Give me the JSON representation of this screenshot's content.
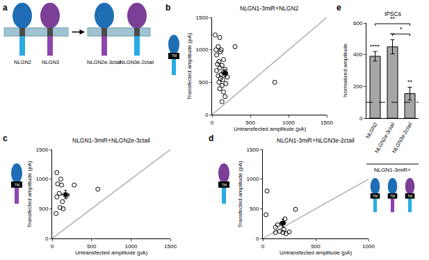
{
  "diagram": {
    "panel": "a",
    "before": [
      {
        "label": "NLGN2",
        "ecto_color": "#1f6eb5",
        "tail_color": "#29abe2"
      },
      {
        "label": "NLGN3",
        "ecto_color": "#7b3f98",
        "tail_color": "#8e44ad"
      }
    ],
    "after": [
      {
        "label": "NLGN2e-3ctail",
        "ecto_color": "#1f6eb5",
        "tail_color": "#8e44ad"
      },
      {
        "label": "NLGN3e-2ctail",
        "ecto_color": "#7b3f98",
        "tail_color": "#29abe2"
      }
    ]
  },
  "chart_data": [
    {
      "type": "scatter",
      "panel": "b",
      "title": "NLGN1-3miR+NLGN2",
      "x_label": "Untransfected amplitude (pA)",
      "y_label": "Transfected amplitude (pA)",
      "xlim": [
        0,
        1500
      ],
      "ylim": [
        0,
        1500
      ],
      "xticks": [
        0,
        500,
        1000,
        1500
      ],
      "yticks": [
        0,
        500,
        1000,
        1500
      ],
      "x": [
        40,
        100,
        80,
        120,
        50,
        110,
        60,
        150,
        90,
        70,
        130,
        100,
        170,
        60,
        150,
        120,
        80,
        200,
        110,
        140,
        90,
        180,
        130,
        100,
        150,
        170,
        130,
        820,
        300
      ],
      "y": [
        1230,
        1190,
        1050,
        1000,
        1000,
        970,
        920,
        850,
        820,
        780,
        760,
        720,
        700,
        680,
        650,
        620,
        600,
        580,
        560,
        540,
        500,
        480,
        450,
        400,
        350,
        280,
        200,
        500,
        1050
      ],
      "mean": {
        "x": 170,
        "y": 640,
        "x_error": 35,
        "y_error": 55
      },
      "identity_line": [
        0,
        1500
      ],
      "marker": "open circle",
      "color": "#000000",
      "glyph": {
        "text": "TM",
        "ecto_color": "#1f6eb5",
        "tail_color": "#29abe2"
      }
    },
    {
      "type": "scatter",
      "panel": "c",
      "title": "NLGN1-3miR+NLGN2e-3ctail",
      "x_label": "Untransfected amplitude (pA)",
      "y_label": "Transfected amplitude (pA)",
      "xlim": [
        0,
        1500
      ],
      "ylim": [
        0,
        1500
      ],
      "xticks": [
        0,
        500,
        1000,
        1500
      ],
      "yticks": [
        0,
        500,
        1000,
        1500
      ],
      "x": [
        60,
        110,
        70,
        120,
        280,
        580,
        90,
        180,
        60,
        130,
        100,
        50,
        140
      ],
      "y": [
        1110,
        1000,
        920,
        900,
        900,
        830,
        760,
        720,
        700,
        620,
        520,
        420,
        500
      ],
      "mean": {
        "x": 170,
        "y": 740,
        "x_error": 45,
        "y_error": 70
      },
      "identity_line": [
        0,
        1500
      ],
      "marker": "open circle",
      "color": "#000000",
      "glyph": {
        "text": "TM",
        "ecto_color": "#1f6eb5",
        "tail_color": "#8e44ad"
      }
    },
    {
      "type": "scatter",
      "panel": "d",
      "title": "NLGN1-3miR+NLGN3e-2ctail",
      "x_label": "Untransfected amplitude (pA)",
      "y_label": "Transfected amplitude (pA)",
      "xlim": [
        0,
        1000
      ],
      "ylim": [
        0,
        1500
      ],
      "xticks": [
        0,
        500,
        1000
      ],
      "yticks": [
        0,
        500,
        1000,
        1500
      ],
      "x": [
        40,
        30,
        310,
        210,
        140,
        180,
        120,
        200,
        160,
        190,
        120,
        220,
        250
      ],
      "y": [
        800,
        400,
        490,
        330,
        230,
        250,
        190,
        150,
        120,
        100,
        100,
        80,
        110
      ],
      "mean": {
        "x": 190,
        "y": 260,
        "x_error": 25,
        "y_error": 65
      },
      "identity_line": [
        0,
        1000
      ],
      "marker": "open circle",
      "color": "#000000",
      "glyph": {
        "text": "TM",
        "ecto_color": "#7b3f98",
        "tail_color": "#29abe2"
      }
    },
    {
      "type": "bar",
      "panel": "e",
      "title": "IPSCs",
      "y_label": "Normalized amplitude",
      "categories": [
        "NLGN2",
        "NLGN2e-3ctail",
        "NLGN3e-2ctail"
      ],
      "values": [
        390,
        450,
        155
      ],
      "errors": [
        30,
        45,
        40
      ],
      "color": "#a6a6a6",
      "ylim": [
        0,
        600
      ],
      "yticks": [
        0,
        200,
        400,
        600
      ],
      "reference_line": 100,
      "significance": [
        "****",
        "**",
        "**"
      ],
      "comparisons": [
        {
          "from": "NLGN2",
          "to": "NLGN3e-2ctail",
          "label": "**",
          "y": 595
        },
        {
          "from": "NLGN2e-3ctail",
          "to": "NLGN3e-2ctail",
          "label": "*",
          "y": 530
        }
      ],
      "group_label": "NLGN1-3miR+",
      "glyphs": [
        {
          "text": "TM",
          "ecto_color": "#1f6eb5",
          "tail_color": "#29abe2"
        },
        {
          "text": "TM",
          "ecto_color": "#1f6eb5",
          "tail_color": "#8e44ad"
        },
        {
          "text": "TM",
          "ecto_color": "#7b3f98",
          "tail_color": "#29abe2"
        }
      ]
    }
  ]
}
